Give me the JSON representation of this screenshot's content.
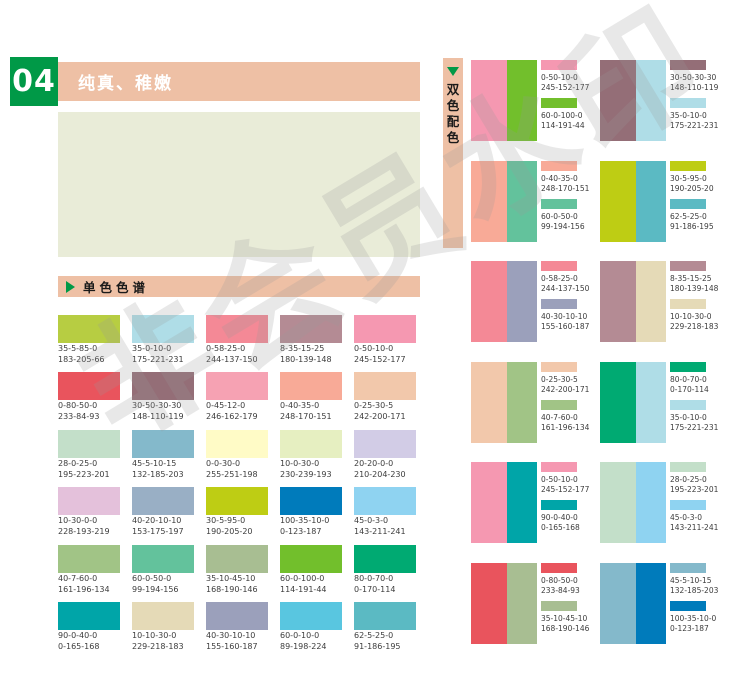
{
  "page": {
    "number": "04",
    "title": "纯真、稚嫩",
    "watermark": "非会员水印",
    "accent_green": "#009947",
    "salmon": "#eec0a5",
    "preview_bg": "#e9ecd8"
  },
  "mono_section": {
    "label": "单色色谱",
    "swatches": [
      {
        "cmyk": "35-5-85-0",
        "rgb": "183-205-66",
        "hex": "#b7cd42"
      },
      {
        "cmyk": "35-0-10-0",
        "rgb": "175-221-231",
        "hex": "#afdde7"
      },
      {
        "cmyk": "0-58-25-0",
        "rgb": "244-137-150",
        "hex": "#f48996"
      },
      {
        "cmyk": "8-35-15-25",
        "rgb": "180-139-148",
        "hex": "#b48b94"
      },
      {
        "cmyk": "0-50-10-0",
        "rgb": "245-152-177",
        "hex": "#f598b1"
      },
      {
        "cmyk": "0-80-50-0",
        "rgb": "233-84-93",
        "hex": "#e9545d"
      },
      {
        "cmyk": "30-50-30-30",
        "rgb": "148-110-119",
        "hex": "#946e77"
      },
      {
        "cmyk": "0-45-12-0",
        "rgb": "246-162-179",
        "hex": "#f6a2b3"
      },
      {
        "cmyk": "0-40-35-0",
        "rgb": "248-170-151",
        "hex": "#f8aa97"
      },
      {
        "cmyk": "0-25-30-5",
        "rgb": "242-200-171",
        "hex": "#f2c8ab"
      },
      {
        "cmyk": "28-0-25-0",
        "rgb": "195-223-201",
        "hex": "#c3dfc9"
      },
      {
        "cmyk": "45-5-10-15",
        "rgb": "132-185-203",
        "hex": "#84b9cb"
      },
      {
        "cmyk": "0-0-30-0",
        "rgb": "255-251-198",
        "hex": "#fffbc6"
      },
      {
        "cmyk": "10-0-30-0",
        "rgb": "230-239-193",
        "hex": "#e6efc1"
      },
      {
        "cmyk": "20-20-0-0",
        "rgb": "210-204-230",
        "hex": "#d2cce6"
      },
      {
        "cmyk": "10-30-0-0",
        "rgb": "228-193-219",
        "hex": "#e4c1db"
      },
      {
        "cmyk": "40-20-10-10",
        "rgb": "153-175-197",
        "hex": "#99afc5"
      },
      {
        "cmyk": "30-5-95-0",
        "rgb": "190-205-20",
        "hex": "#becd14"
      },
      {
        "cmyk": "100-35-10-0",
        "rgb": "0-123-187",
        "hex": "#007bbb"
      },
      {
        "cmyk": "45-0-3-0",
        "rgb": "143-211-241",
        "hex": "#8fd3f1"
      },
      {
        "cmyk": "40-7-60-0",
        "rgb": "161-196-134",
        "hex": "#a1c486"
      },
      {
        "cmyk": "60-0-50-0",
        "rgb": "99-194-156",
        "hex": "#63c29c"
      },
      {
        "cmyk": "35-10-45-10",
        "rgb": "168-190-146",
        "hex": "#a8be92"
      },
      {
        "cmyk": "60-0-100-0",
        "rgb": "114-191-44",
        "hex": "#72bf2c"
      },
      {
        "cmyk": "80-0-70-0",
        "rgb": "0-170-114",
        "hex": "#00aa72"
      },
      {
        "cmyk": "90-0-40-0",
        "rgb": "0-165-168",
        "hex": "#00a5a8"
      },
      {
        "cmyk": "10-10-30-0",
        "rgb": "229-218-183",
        "hex": "#e5dab7"
      },
      {
        "cmyk": "40-30-10-10",
        "rgb": "155-160-187",
        "hex": "#9ba0bb"
      },
      {
        "cmyk": "60-0-10-0",
        "rgb": "89-198-224",
        "hex": "#59c6e0"
      },
      {
        "cmyk": "62-5-25-0",
        "rgb": "91-186-195",
        "hex": "#5bbac3"
      }
    ]
  },
  "duo_section": {
    "label": "双色配色",
    "pairs": [
      {
        "a": {
          "cmyk": "0-50-10-0",
          "rgb": "245-152-177",
          "hex": "#f598b1"
        },
        "b": {
          "cmyk": "60-0-100-0",
          "rgb": "114-191-44",
          "hex": "#72bf2c"
        }
      },
      {
        "a": {
          "cmyk": "30-50-30-30",
          "rgb": "148-110-119",
          "hex": "#946e77"
        },
        "b": {
          "cmyk": "35-0-10-0",
          "rgb": "175-221-231",
          "hex": "#afdde7"
        }
      },
      {
        "a": {
          "cmyk": "0-40-35-0",
          "rgb": "248-170-151",
          "hex": "#f8aa97"
        },
        "b": {
          "cmyk": "60-0-50-0",
          "rgb": "99-194-156",
          "hex": "#63c29c"
        }
      },
      {
        "a": {
          "cmyk": "30-5-95-0",
          "rgb": "190-205-20",
          "hex": "#becd14"
        },
        "b": {
          "cmyk": "62-5-25-0",
          "rgb": "91-186-195",
          "hex": "#5bbac3"
        }
      },
      {
        "a": {
          "cmyk": "0-58-25-0",
          "rgb": "244-137-150",
          "hex": "#f48996"
        },
        "b": {
          "cmyk": "40-30-10-10",
          "rgb": "155-160-187",
          "hex": "#9ba0bb"
        }
      },
      {
        "a": {
          "cmyk": "8-35-15-25",
          "rgb": "180-139-148",
          "hex": "#b48b94"
        },
        "b": {
          "cmyk": "10-10-30-0",
          "rgb": "229-218-183",
          "hex": "#e5dab7"
        }
      },
      {
        "a": {
          "cmyk": "0-25-30-5",
          "rgb": "242-200-171",
          "hex": "#f2c8ab"
        },
        "b": {
          "cmyk": "40-7-60-0",
          "rgb": "161-196-134",
          "hex": "#a1c486"
        }
      },
      {
        "a": {
          "cmyk": "80-0-70-0",
          "rgb": "0-170-114",
          "hex": "#00aa72"
        },
        "b": {
          "cmyk": "35-0-10-0",
          "rgb": "175-221-231",
          "hex": "#afdde7"
        }
      },
      {
        "a": {
          "cmyk": "0-50-10-0",
          "rgb": "245-152-177",
          "hex": "#f598b1"
        },
        "b": {
          "cmyk": "90-0-40-0",
          "rgb": "0-165-168",
          "hex": "#00a5a8"
        }
      },
      {
        "a": {
          "cmyk": "28-0-25-0",
          "rgb": "195-223-201",
          "hex": "#c3dfc9"
        },
        "b": {
          "cmyk": "45-0-3-0",
          "rgb": "143-211-241",
          "hex": "#8fd3f1"
        }
      },
      {
        "a": {
          "cmyk": "0-80-50-0",
          "rgb": "233-84-93",
          "hex": "#e9545d"
        },
        "b": {
          "cmyk": "35-10-45-10",
          "rgb": "168-190-146",
          "hex": "#a8be92"
        }
      },
      {
        "a": {
          "cmyk": "45-5-10-15",
          "rgb": "132-185-203",
          "hex": "#84b9cb"
        },
        "b": {
          "cmyk": "100-35-10-0",
          "rgb": "0-123-187",
          "hex": "#007bbb"
        }
      }
    ]
  }
}
